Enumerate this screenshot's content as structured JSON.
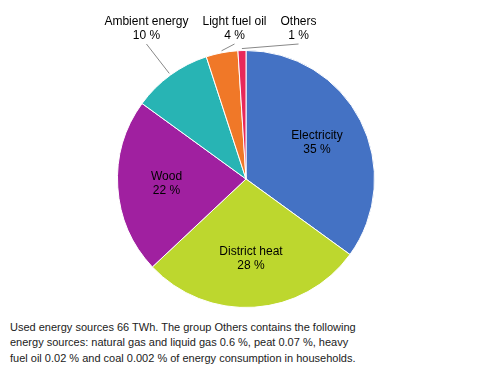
{
  "chart_data": {
    "type": "pie",
    "categories": [
      "Electricity",
      "District heat",
      "Wood",
      "Ambient energy",
      "Light fuel oil",
      "Others"
    ],
    "values": [
      35,
      28,
      22,
      10,
      4,
      1
    ],
    "value_labels": [
      "35 %",
      "28 %",
      "22 %",
      "10 %",
      "4 %",
      "1 %"
    ],
    "colors": [
      "#4472c4",
      "#bdd72e",
      "#a020a0",
      "#28b4b4",
      "#f07828",
      "#e8285a"
    ],
    "data_labels": true,
    "annotations": [
      "Used energy sources 66 TWh. The group Others contains the following\nenergy sources: natural gas and liquid gas 0.6 %, peat 0.07 %, heavy\nfuel oil 0.02 % and coal 0.002 % of energy consumption in households."
    ]
  }
}
